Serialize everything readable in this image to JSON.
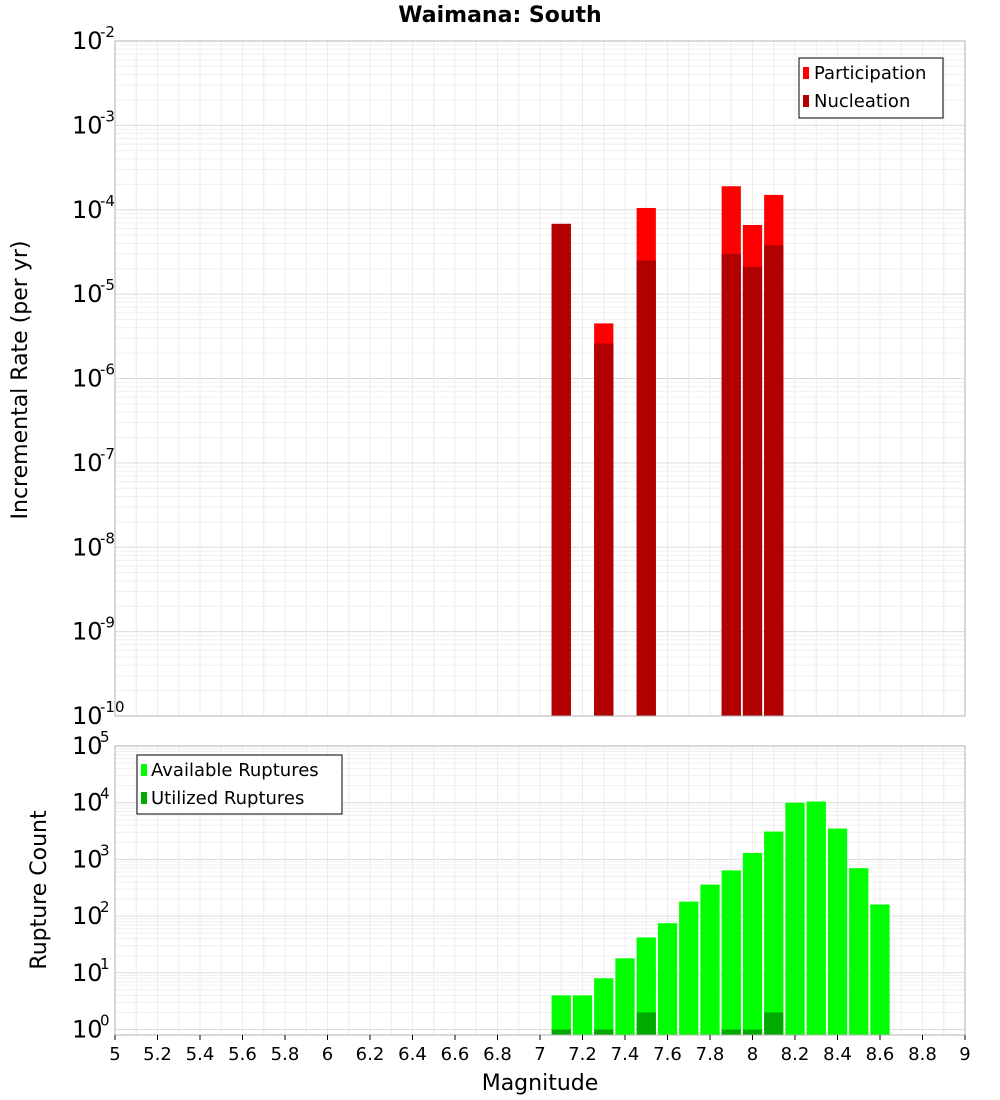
{
  "chart_data": [
    {
      "type": "bar",
      "title": "Waimana: South",
      "ylabel": "Incremental Rate (per yr)",
      "xlabel": "",
      "y_scale": "log",
      "ylim": [
        1e-10,
        0.01
      ],
      "xlim": [
        5,
        9
      ],
      "grid": true,
      "legend_position": "top-right",
      "series": [
        {
          "name": "Participation",
          "color": "#ff0000",
          "x": [
            7.1,
            7.3,
            7.5,
            7.9,
            8.0,
            8.1
          ],
          "values": [
            6.8e-05,
            4.5e-06,
            0.000105,
            0.00019,
            6.6e-05,
            0.00015
          ]
        },
        {
          "name": "Nucleation",
          "color": "#b00000",
          "x": [
            7.1,
            7.3,
            7.5,
            7.9,
            8.0,
            8.1
          ],
          "values": [
            6.8e-05,
            2.6e-06,
            2.5e-05,
            3e-05,
            2.1e-05,
            3.8e-05
          ]
        }
      ]
    },
    {
      "type": "bar",
      "title": "",
      "ylabel": "Rupture Count",
      "xlabel": "Magnitude",
      "y_scale": "log",
      "ylim": [
        0.8,
        100000
      ],
      "xlim": [
        5,
        9
      ],
      "grid": true,
      "legend_position": "top-left",
      "x_ticks": [
        "5",
        "5.2",
        "5.4",
        "5.6",
        "5.8",
        "6",
        "6.2",
        "6.4",
        "6.6",
        "6.8",
        "7",
        "7.2",
        "7.4",
        "7.6",
        "7.8",
        "8",
        "8.2",
        "8.4",
        "8.6",
        "8.8",
        "9"
      ],
      "series": [
        {
          "name": "Available Ruptures",
          "color": "#00ff00",
          "x": [
            7.1,
            7.2,
            7.3,
            7.4,
            7.5,
            7.6,
            7.7,
            7.8,
            7.9,
            8.0,
            8.1,
            8.2,
            8.3,
            8.4,
            8.5,
            8.6
          ],
          "values": [
            4,
            4,
            8,
            18,
            42,
            75,
            180,
            360,
            640,
            1300,
            3100,
            10000,
            10500,
            3500,
            700,
            160
          ]
        },
        {
          "name": "Utilized Ruptures",
          "color": "#00aa00",
          "x": [
            7.1,
            7.3,
            7.5,
            7.9,
            8.0,
            8.1
          ],
          "values": [
            1,
            1,
            2,
            1,
            1,
            2
          ]
        }
      ]
    }
  ]
}
